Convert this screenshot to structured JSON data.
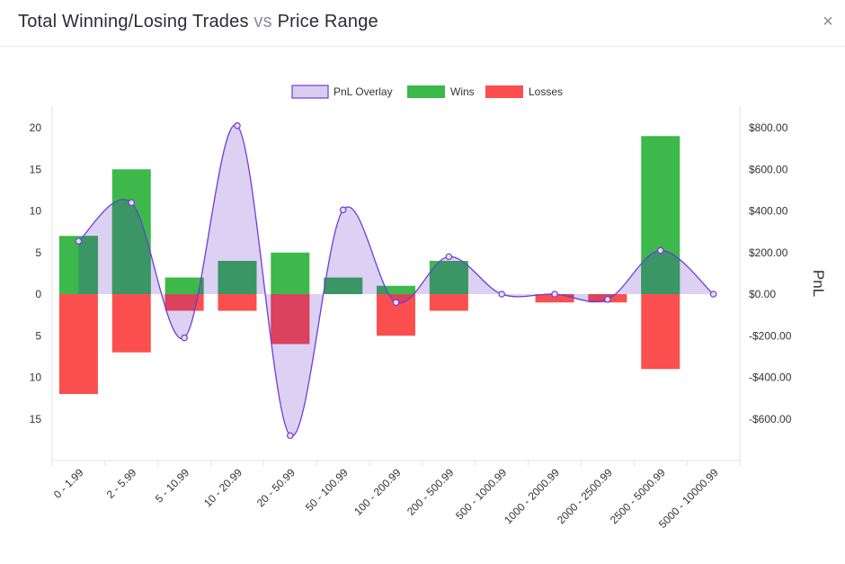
{
  "modal": {
    "title_part1": "Total Winning/Losing Trades",
    "title_vs": "vs",
    "title_part2": "Price Range",
    "close_glyph": "×"
  },
  "chart_data": {
    "type": "bar",
    "title": "Total Winning/Losing Trades vs Price Range",
    "categories": [
      "0 - 1.99",
      "2 - 5.99",
      "5 - 10.99",
      "10 - 20.99",
      "20 - 50.99",
      "50 - 100.99",
      "100 - 200.99",
      "200 - 500.99",
      "500 - 1000.99",
      "1000 - 2000.99",
      "2000 - 2500.99",
      "2500 - 5000.99",
      "5000 - 10000.99"
    ],
    "series": [
      {
        "name": "PnL Overlay",
        "kind": "area",
        "axis": "right",
        "color": "#6a3fd6",
        "fill": "#d9ccf2",
        "values": [
          255,
          440,
          -210,
          810,
          -680,
          405,
          -40,
          180,
          0,
          0,
          -25,
          210,
          0
        ]
      },
      {
        "name": "Wins",
        "kind": "bar",
        "axis": "left",
        "color": "#3cb94a",
        "values": [
          7,
          15,
          2,
          4,
          5,
          2,
          1,
          4,
          0,
          0,
          0,
          19,
          0
        ]
      },
      {
        "name": "Losses",
        "kind": "bar",
        "axis": "left",
        "color": "#fb4f4f",
        "values": [
          -12,
          -7,
          -2,
          -2,
          -6,
          0,
          -5,
          -2,
          0,
          -1,
          -1,
          -9,
          0
        ]
      }
    ],
    "y_left": {
      "ylim": [
        -20,
        20
      ],
      "ticks": [
        20,
        15,
        10,
        5,
        0,
        -5,
        -10,
        -15
      ],
      "tick_labels": [
        "20",
        "15",
        "10",
        "5",
        "0",
        "5",
        "10",
        "15"
      ]
    },
    "y_right": {
      "label": "PnL",
      "ylim": [
        -800,
        800
      ],
      "ticks": [
        800,
        600,
        400,
        200,
        0,
        -200,
        -400,
        -600
      ],
      "tick_labels": [
        "$800.00",
        "$600.00",
        "$400.00",
        "$200.00",
        "$0.00",
        "-$200.00",
        "-$400.00",
        "-$600.00"
      ]
    },
    "legend_position": "top",
    "grid": false,
    "overlap_color": "#3a8f6a"
  }
}
